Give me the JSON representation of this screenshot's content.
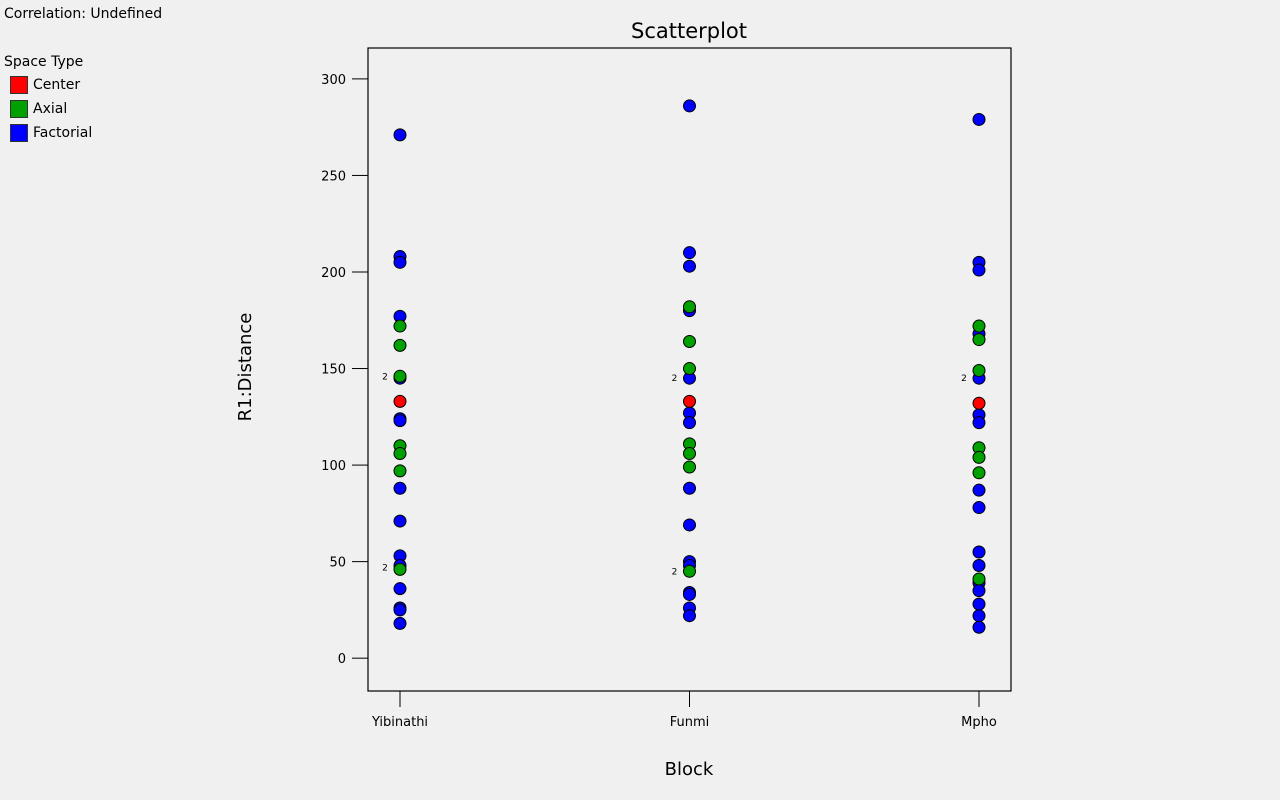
{
  "correlation_label": "Correlation: Undefined",
  "legend": {
    "title": "Space Type",
    "items": [
      {
        "label": "Center",
        "color": "#ff0000"
      },
      {
        "label": "Axial",
        "color": "#00a000"
      },
      {
        "label": "Factorial",
        "color": "#0000ff"
      }
    ]
  },
  "chart_data": {
    "type": "scatter",
    "title": "Scatterplot",
    "xlabel": "Block",
    "ylabel": "R1:Distance",
    "categories": [
      "Yibinathi",
      "Funmi",
      "Mpho"
    ],
    "ylim": [
      -17,
      316
    ],
    "yticks": [
      0,
      50,
      100,
      150,
      200,
      250,
      300
    ],
    "grid": false,
    "series": [
      {
        "name": "Center",
        "color": "#ff0000",
        "points": [
          {
            "x": "Yibinathi",
            "y": 133
          },
          {
            "x": "Funmi",
            "y": 133
          },
          {
            "x": "Mpho",
            "y": 132
          }
        ]
      },
      {
        "name": "Axial",
        "color": "#00a000",
        "points": [
          {
            "x": "Yibinathi",
            "y": 172
          },
          {
            "x": "Yibinathi",
            "y": 162
          },
          {
            "x": "Yibinathi",
            "y": 146
          },
          {
            "x": "Yibinathi",
            "y": 110
          },
          {
            "x": "Yibinathi",
            "y": 106
          },
          {
            "x": "Yibinathi",
            "y": 97
          },
          {
            "x": "Yibinathi",
            "y": 46
          },
          {
            "x": "Funmi",
            "y": 182
          },
          {
            "x": "Funmi",
            "y": 164
          },
          {
            "x": "Funmi",
            "y": 150
          },
          {
            "x": "Funmi",
            "y": 111
          },
          {
            "x": "Funmi",
            "y": 106
          },
          {
            "x": "Funmi",
            "y": 99
          },
          {
            "x": "Funmi",
            "y": 45
          },
          {
            "x": "Mpho",
            "y": 172
          },
          {
            "x": "Mpho",
            "y": 165
          },
          {
            "x": "Mpho",
            "y": 149
          },
          {
            "x": "Mpho",
            "y": 109
          },
          {
            "x": "Mpho",
            "y": 104
          },
          {
            "x": "Mpho",
            "y": 96
          },
          {
            "x": "Mpho",
            "y": 41
          }
        ]
      },
      {
        "name": "Factorial",
        "color": "#0000ff",
        "points": [
          {
            "x": "Yibinathi",
            "y": 271
          },
          {
            "x": "Yibinathi",
            "y": 208
          },
          {
            "x": "Yibinathi",
            "y": 205
          },
          {
            "x": "Yibinathi",
            "y": 177
          },
          {
            "x": "Yibinathi",
            "y": 145
          },
          {
            "x": "Yibinathi",
            "y": 124
          },
          {
            "x": "Yibinathi",
            "y": 123
          },
          {
            "x": "Yibinathi",
            "y": 88
          },
          {
            "x": "Yibinathi",
            "y": 71
          },
          {
            "x": "Yibinathi",
            "y": 53
          },
          {
            "x": "Yibinathi",
            "y": 48
          },
          {
            "x": "Yibinathi",
            "y": 36
          },
          {
            "x": "Yibinathi",
            "y": 26
          },
          {
            "x": "Yibinathi",
            "y": 25
          },
          {
            "x": "Yibinathi",
            "y": 18
          },
          {
            "x": "Funmi",
            "y": 286
          },
          {
            "x": "Funmi",
            "y": 210
          },
          {
            "x": "Funmi",
            "y": 203
          },
          {
            "x": "Funmi",
            "y": 180
          },
          {
            "x": "Funmi",
            "y": 145
          },
          {
            "x": "Funmi",
            "y": 127
          },
          {
            "x": "Funmi",
            "y": 122
          },
          {
            "x": "Funmi",
            "y": 88
          },
          {
            "x": "Funmi",
            "y": 69
          },
          {
            "x": "Funmi",
            "y": 50
          },
          {
            "x": "Funmi",
            "y": 48
          },
          {
            "x": "Funmi",
            "y": 34
          },
          {
            "x": "Funmi",
            "y": 33
          },
          {
            "x": "Funmi",
            "y": 26
          },
          {
            "x": "Funmi",
            "y": 22
          },
          {
            "x": "Mpho",
            "y": 279
          },
          {
            "x": "Mpho",
            "y": 205
          },
          {
            "x": "Mpho",
            "y": 201
          },
          {
            "x": "Mpho",
            "y": 168
          },
          {
            "x": "Mpho",
            "y": 145
          },
          {
            "x": "Mpho",
            "y": 126
          },
          {
            "x": "Mpho",
            "y": 122
          },
          {
            "x": "Mpho",
            "y": 87
          },
          {
            "x": "Mpho",
            "y": 78
          },
          {
            "x": "Mpho",
            "y": 55
          },
          {
            "x": "Mpho",
            "y": 48
          },
          {
            "x": "Mpho",
            "y": 39
          },
          {
            "x": "Mpho",
            "y": 35
          },
          {
            "x": "Mpho",
            "y": 28
          },
          {
            "x": "Mpho",
            "y": 22
          },
          {
            "x": "Mpho",
            "y": 16
          }
        ]
      }
    ],
    "annotations": [
      {
        "x": "Yibinathi",
        "y": 146,
        "text": "2"
      },
      {
        "x": "Yibinathi",
        "y": 47,
        "text": "2"
      },
      {
        "x": "Funmi",
        "y": 145,
        "text": "2"
      },
      {
        "x": "Funmi",
        "y": 45,
        "text": "2"
      },
      {
        "x": "Mpho",
        "y": 145,
        "text": "2"
      }
    ]
  }
}
